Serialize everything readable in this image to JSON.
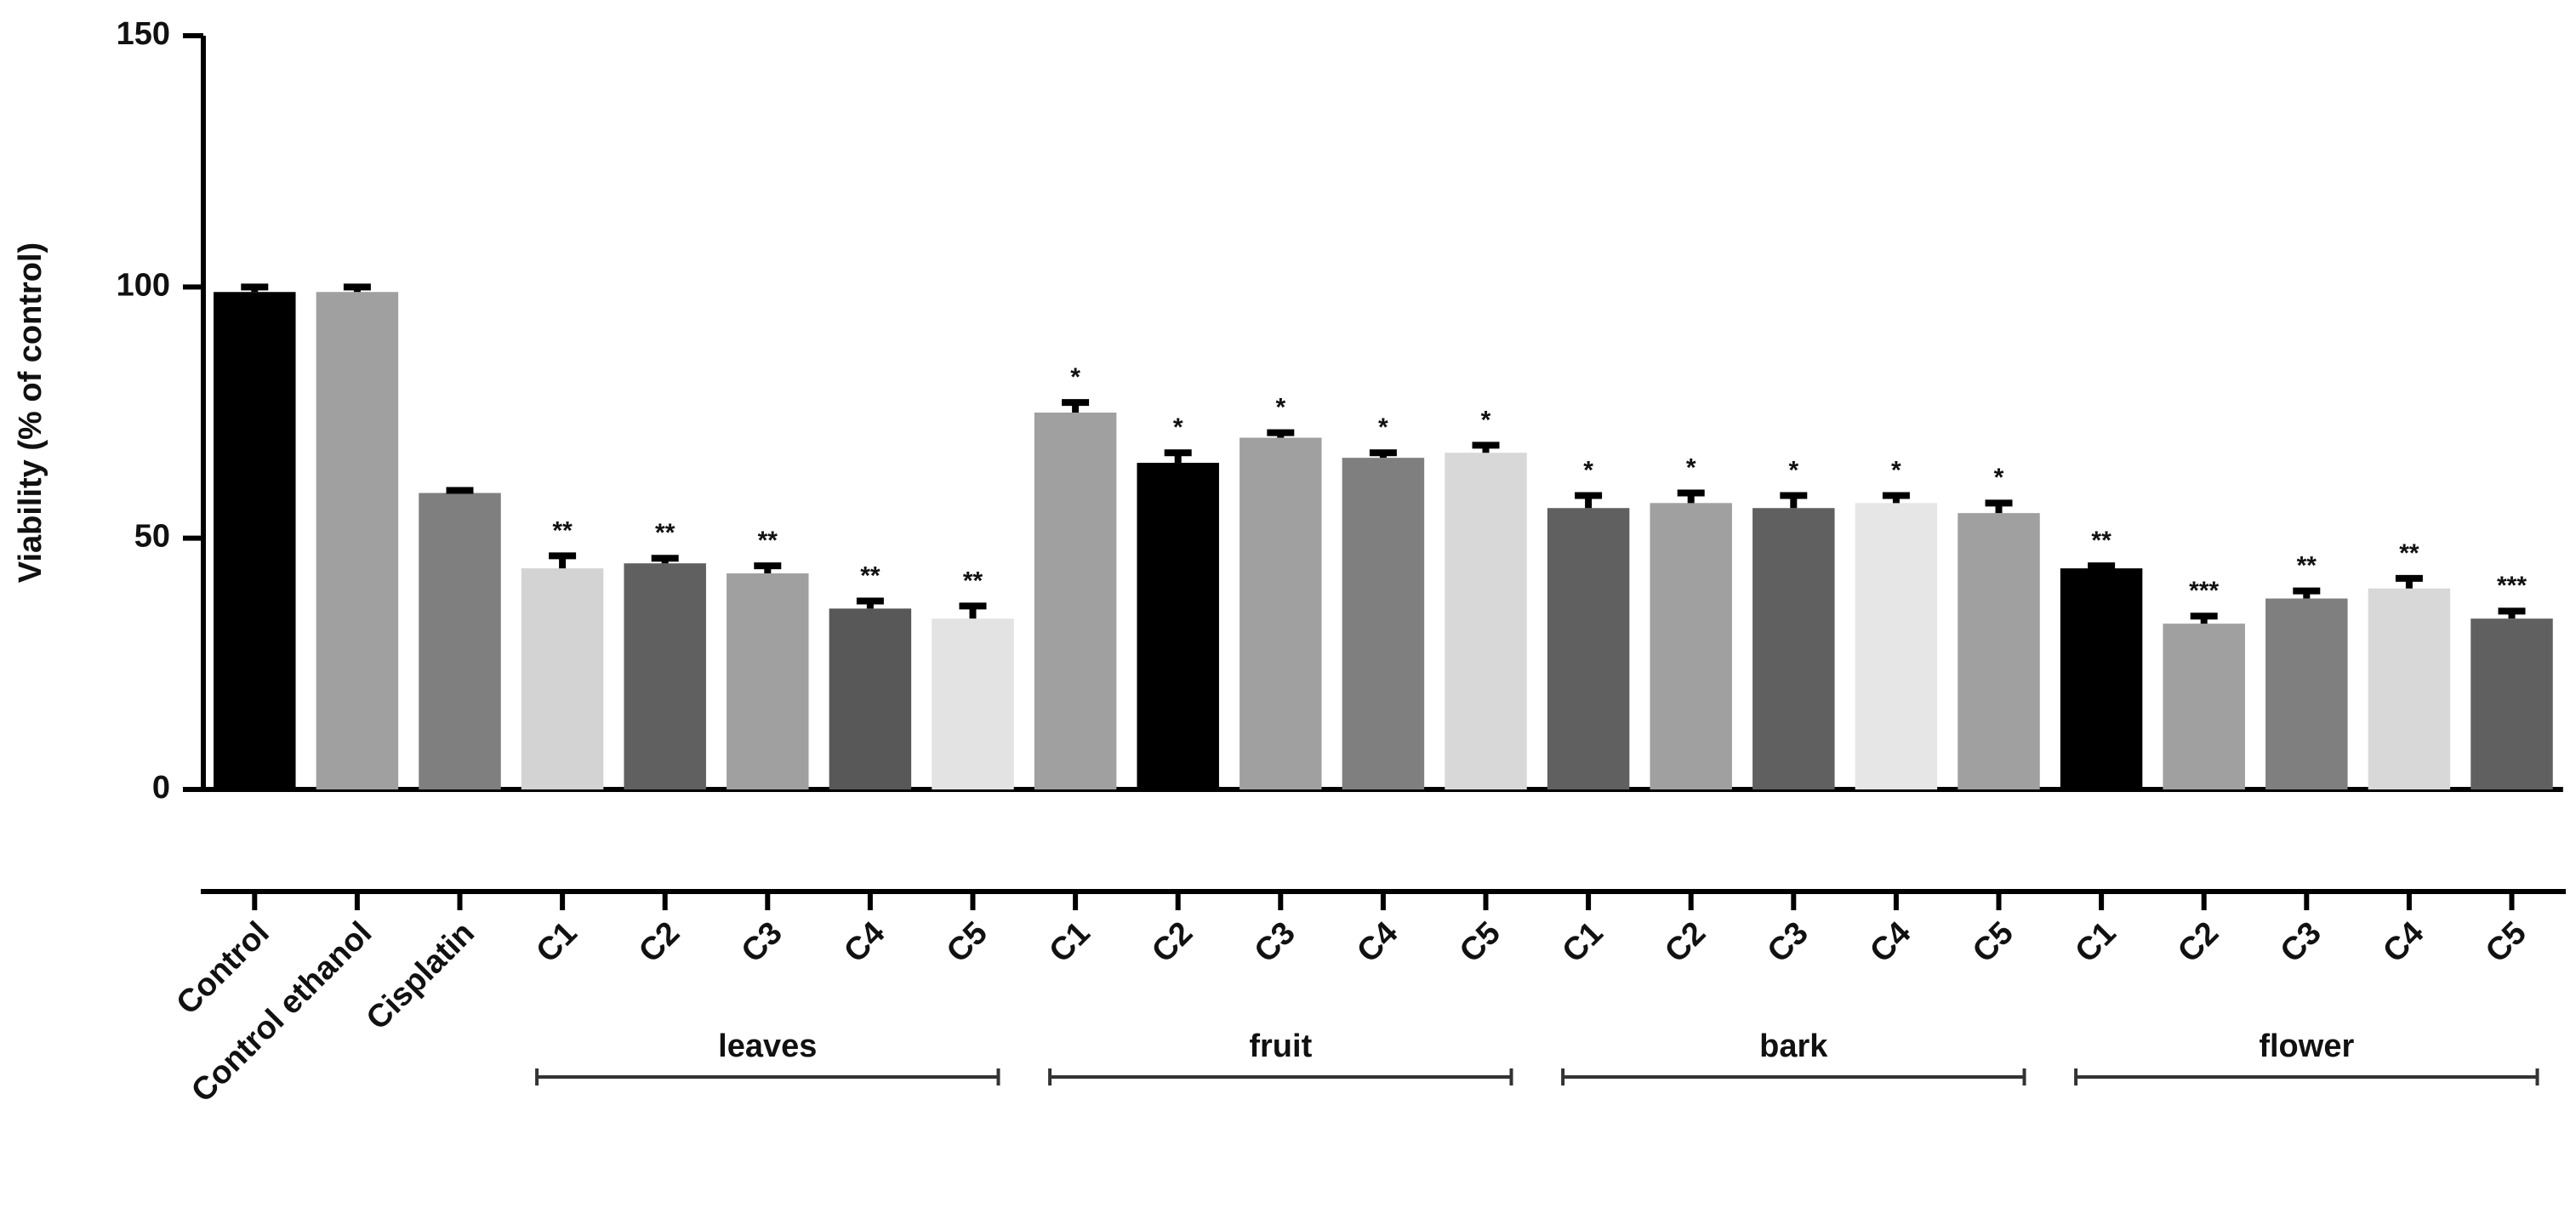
{
  "chart_data": {
    "type": "bar",
    "ylabel": "Viability (% of control)",
    "categories": [
      "Control",
      "Control ethanol",
      "Cisplatin",
      "C1",
      "C2",
      "C3",
      "C4",
      "C5",
      "C1",
      "C2",
      "C3",
      "C4",
      "C5",
      "C1",
      "C2",
      "C3",
      "C4",
      "C5",
      "C1",
      "C2",
      "C3",
      "C4",
      "C5"
    ],
    "groups": [
      null,
      null,
      null,
      "leaves",
      "leaves",
      "leaves",
      "leaves",
      "leaves",
      "fruit",
      "fruit",
      "fruit",
      "fruit",
      "fruit",
      "bark",
      "bark",
      "bark",
      "bark",
      "bark",
      "flower",
      "flower",
      "flower",
      "flower",
      "flower"
    ],
    "values": [
      99,
      99,
      59,
      44,
      45,
      43,
      36,
      34,
      75,
      65,
      70,
      66,
      67,
      56,
      57,
      56,
      57,
      55,
      44,
      33,
      38,
      40,
      34
    ],
    "errors": [
      1,
      1,
      0.5,
      2.5,
      1,
      1.5,
      1.5,
      2.5,
      2,
      2,
      1,
      1,
      1.5,
      2.5,
      2,
      2.5,
      1.5,
      2,
      0.5,
      1.5,
      1.5,
      2,
      1.5
    ],
    "significance": [
      null,
      null,
      null,
      "**",
      "**",
      "**",
      "**",
      "**",
      "*",
      "*",
      "*",
      "*",
      "*",
      "*",
      "*",
      "*",
      "*",
      "*",
      "**",
      "***",
      "**",
      "**",
      "***"
    ],
    "colors": [
      "#000000",
      "#a0a0a0",
      "#7f7f7f",
      "#d3d3d3",
      "#606060",
      "#a0a0a0",
      "#585858",
      "#e3e3e3",
      "#a0a0a0",
      "#000000",
      "#a0a0a0",
      "#7f7f7f",
      "#d8d8d8",
      "#606060",
      "#a0a0a0",
      "#606060",
      "#e6e6e6",
      "#a0a0a0",
      "#000000",
      "#a0a0a0",
      "#7f7f7f",
      "#d8d8d8",
      "#606060"
    ],
    "ylim": [
      0,
      150
    ],
    "yticks": [
      0,
      50,
      100,
      150
    ]
  }
}
